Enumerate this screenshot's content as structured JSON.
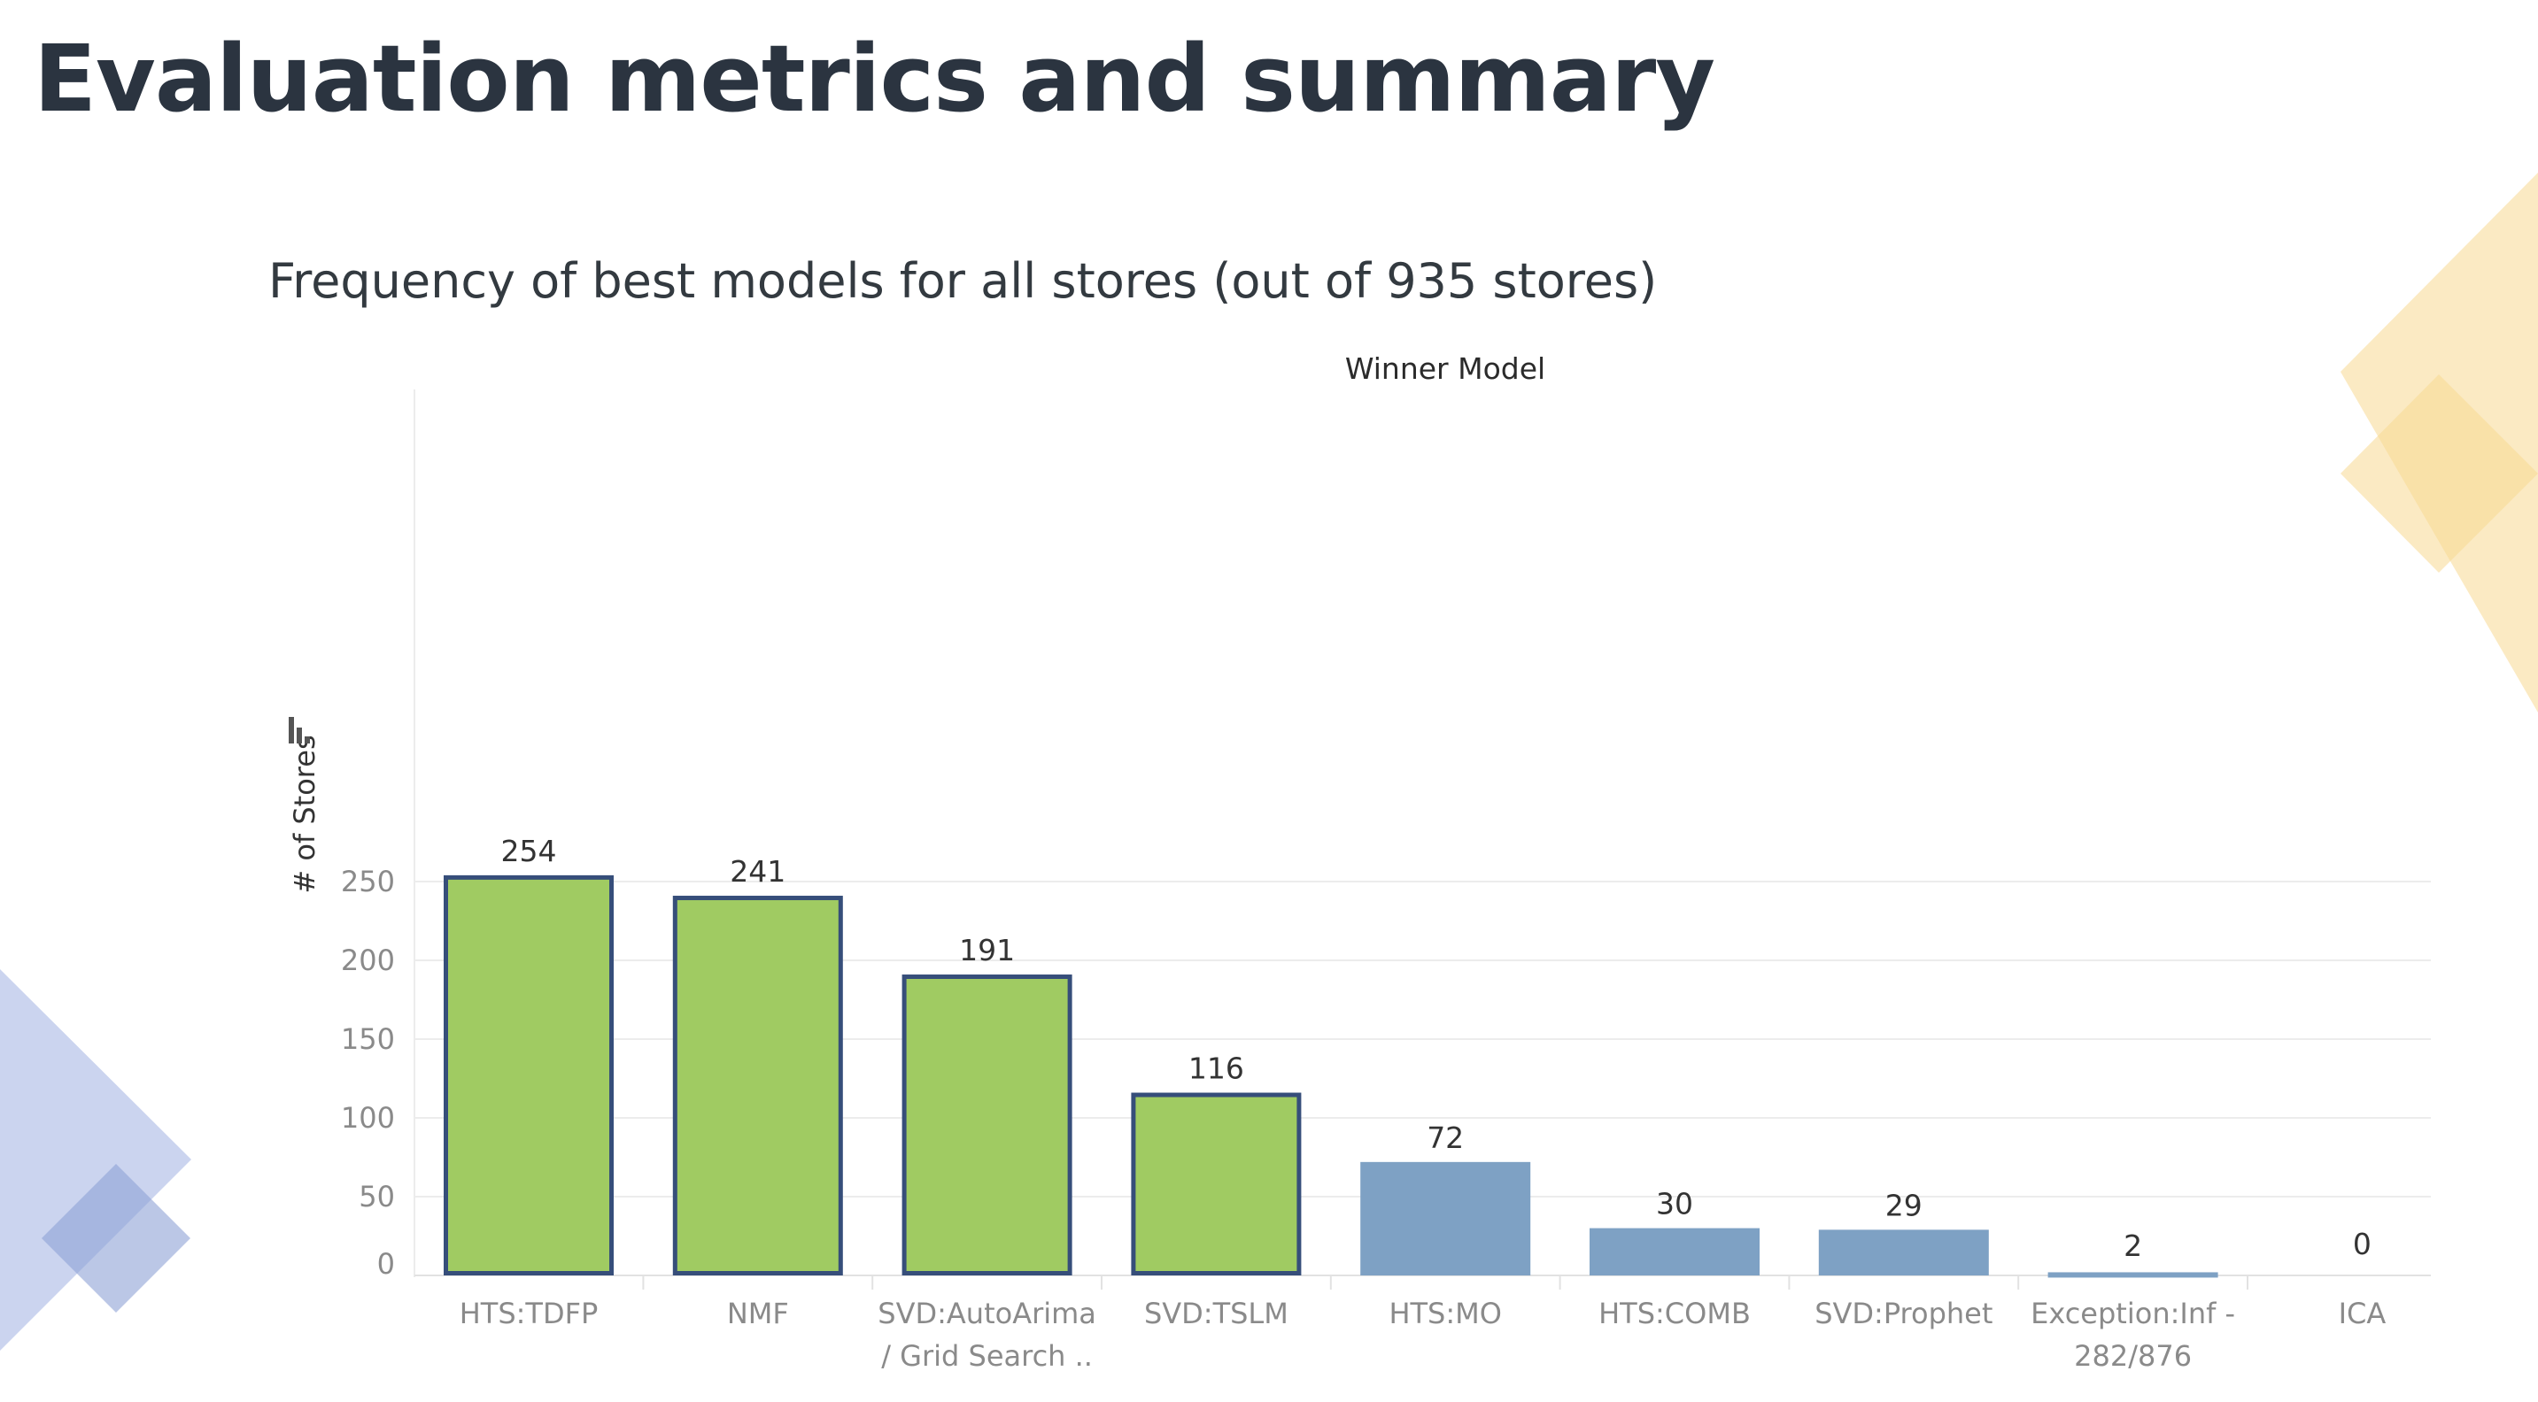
{
  "slide": {
    "title": "Evaluation metrics and summary"
  },
  "colors": {
    "highlight_fill": "#a0cb62",
    "highlight_stroke": "#364e7a",
    "normal_fill": "#7ea1c4",
    "deco_yellow": "#f7d892",
    "deco_blue": "#a9b8e4"
  },
  "chart_data": {
    "type": "bar",
    "title": "Frequency of best models for all stores (out of 935 stores)",
    "column_header": "Winner Model",
    "ylabel": "# of Stores",
    "ylabel_icon": "sort-icon",
    "ylim": [
      0,
      280
    ],
    "yticks": [
      0,
      50,
      100,
      150,
      200,
      250
    ],
    "grid": true,
    "categories": [
      [
        "HTS:TDFP"
      ],
      [
        "NMF"
      ],
      [
        "SVD:AutoArima",
        "/ Grid Search .."
      ],
      [
        "SVD:TSLM"
      ],
      [
        "HTS:MO"
      ],
      [
        "HTS:COMB"
      ],
      [
        "SVD:Prophet"
      ],
      [
        "Exception:Inf -",
        "282/876"
      ],
      [
        "ICA"
      ]
    ],
    "values": [
      254,
      241,
      191,
      116,
      72,
      30,
      29,
      2,
      0
    ],
    "highlighted": [
      true,
      true,
      true,
      true,
      false,
      false,
      false,
      false,
      false
    ]
  }
}
